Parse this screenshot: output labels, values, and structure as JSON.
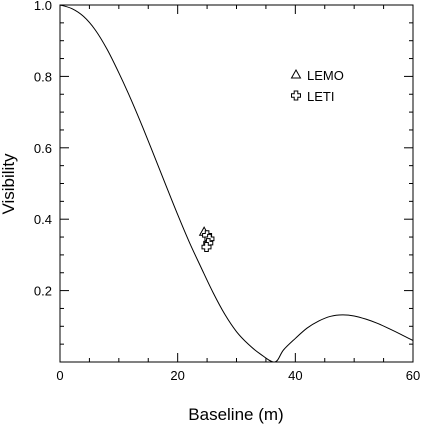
{
  "chart_data": {
    "type": "scatter",
    "xlabel": "Baseline (m)",
    "ylabel": "Visibility",
    "xlim": [
      0,
      60
    ],
    "ylim": [
      0,
      1.0
    ],
    "x_ticks": [
      "0",
      "20",
      "40",
      "60"
    ],
    "y_ticks": [
      "0.2",
      "0.4",
      "0.6",
      "0.8",
      "1.0"
    ],
    "grid": false,
    "legend_position": "top-right",
    "model_curve": {
      "x": [
        0,
        2,
        4,
        6,
        8,
        10,
        12,
        14,
        16,
        18,
        20,
        22,
        24,
        26,
        28,
        30,
        32,
        34,
        36.5,
        38,
        40,
        42,
        44,
        46,
        48,
        50,
        52,
        54,
        56,
        58,
        60
      ],
      "y": [
        1.0,
        0.99,
        0.968,
        0.93,
        0.876,
        0.81,
        0.738,
        0.66,
        0.578,
        0.495,
        0.413,
        0.335,
        0.264,
        0.195,
        0.134,
        0.085,
        0.05,
        0.023,
        0.0,
        0.034,
        0.066,
        0.095,
        0.115,
        0.128,
        0.132,
        0.129,
        0.12,
        0.108,
        0.093,
        0.077,
        0.06
      ]
    },
    "series": [
      {
        "name": "LEMO",
        "marker": "triangle",
        "points": [
          {
            "x": 24.5,
            "y": 0.365
          }
        ]
      },
      {
        "name": "LETI",
        "marker": "plus",
        "points": [
          {
            "x": 25.0,
            "y": 0.355
          },
          {
            "x": 25.4,
            "y": 0.345
          },
          {
            "x": 25.2,
            "y": 0.333
          },
          {
            "x": 24.9,
            "y": 0.322
          }
        ]
      }
    ]
  }
}
